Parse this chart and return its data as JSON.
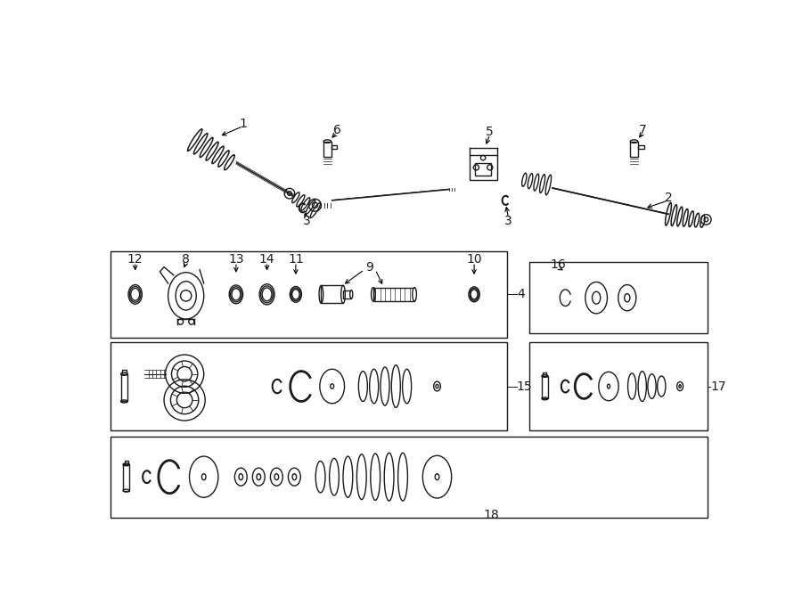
{
  "bg_color": "#ffffff",
  "line_color": "#1a1a1a",
  "lw": 1.0,
  "fig_w": 9.0,
  "fig_h": 6.61
}
